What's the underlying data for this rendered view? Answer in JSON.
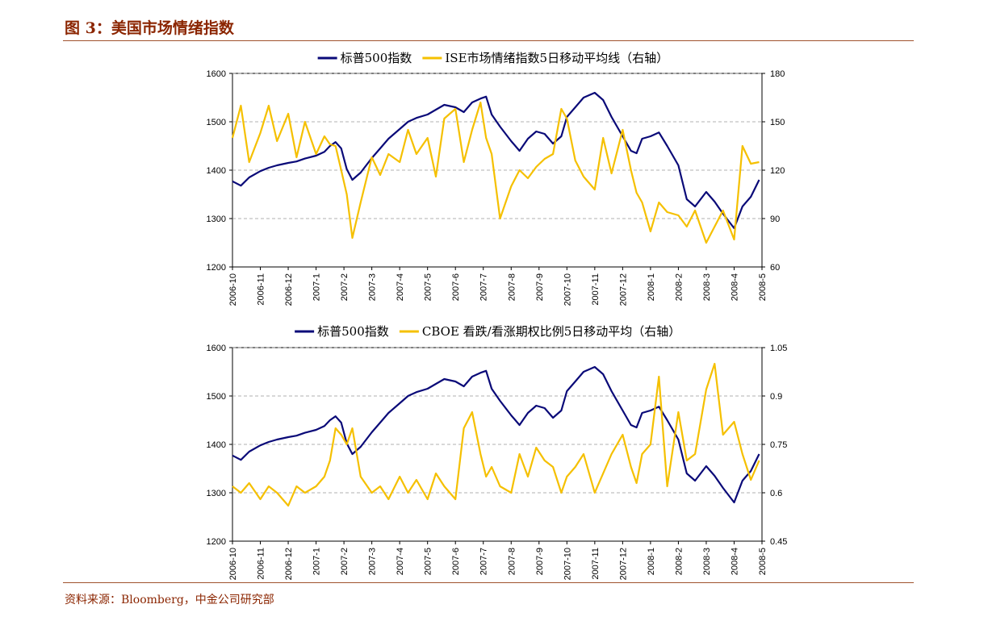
{
  "figure": {
    "title": "图 3：美国市场情绪指数",
    "source": "资料来源：Bloomberg，中金公司研究部"
  },
  "colors": {
    "spx": "#0a0a78",
    "indicator": "#f5c000",
    "grid": "#999999"
  },
  "chart_data": [
    {
      "type": "line",
      "legend": [
        "标普500指数",
        "ISE市场情绪指数5日移动平均线（右轴）"
      ],
      "legend_placement": "top-center",
      "grid": true,
      "x_ticks": [
        "2006-10",
        "2006-11",
        "2006-12",
        "2007-1",
        "2007-2",
        "2007-3",
        "2007-4",
        "2007-5",
        "2007-6",
        "2007-7",
        "2007-8",
        "2007-9",
        "2007-10",
        "2007-11",
        "2007-12",
        "2008-1",
        "2008-2",
        "2008-3",
        "2008-4",
        "2008-5"
      ],
      "y_left": {
        "min": 1200,
        "max": 1600,
        "ticks": [
          "1200",
          "1300",
          "1400",
          "1500",
          "1600"
        ]
      },
      "y_right": {
        "min": 60,
        "max": 180,
        "ticks": [
          "60",
          "90",
          "120",
          "150",
          "180"
        ]
      },
      "series": [
        {
          "name": "标普500指数",
          "axis": "left",
          "color": "#0a0a78",
          "x": [
            0,
            0.3,
            0.6,
            1,
            1.3,
            1.6,
            2,
            2.3,
            2.6,
            3,
            3.3,
            3.5,
            3.7,
            3.9,
            4.1,
            4.3,
            4.6,
            5,
            5.3,
            5.6,
            6,
            6.3,
            6.6,
            7,
            7.3,
            7.6,
            8,
            8.3,
            8.6,
            8.9,
            9.1,
            9.3,
            9.6,
            10,
            10.3,
            10.6,
            10.9,
            11.2,
            11.5,
            11.8,
            12,
            12.3,
            12.6,
            13,
            13.3,
            13.6,
            14,
            14.3,
            14.5,
            14.7,
            15,
            15.3,
            15.6,
            16,
            16.3,
            16.6,
            17,
            17.3,
            17.6,
            18,
            18.3,
            18.6,
            18.9
          ],
          "values": [
            1377,
            1368,
            1385,
            1398,
            1405,
            1410,
            1415,
            1418,
            1424,
            1430,
            1438,
            1450,
            1458,
            1445,
            1402,
            1380,
            1395,
            1425,
            1445,
            1465,
            1485,
            1500,
            1508,
            1515,
            1525,
            1535,
            1530,
            1520,
            1540,
            1548,
            1552,
            1515,
            1490,
            1460,
            1440,
            1465,
            1480,
            1475,
            1455,
            1470,
            1510,
            1530,
            1550,
            1560,
            1545,
            1510,
            1470,
            1440,
            1435,
            1465,
            1470,
            1478,
            1450,
            1410,
            1340,
            1325,
            1355,
            1335,
            1310,
            1280,
            1325,
            1345,
            1380
          ]
        },
        {
          "name": "ISE市场情绪指数5日移动平均线（右轴）",
          "axis": "right",
          "color": "#f5c000",
          "x": [
            0,
            0.3,
            0.6,
            1,
            1.3,
            1.6,
            2,
            2.3,
            2.6,
            3,
            3.3,
            3.5,
            3.7,
            3.9,
            4.1,
            4.3,
            4.6,
            5,
            5.3,
            5.6,
            6,
            6.3,
            6.6,
            7,
            7.3,
            7.6,
            8,
            8.3,
            8.6,
            8.9,
            9.1,
            9.3,
            9.6,
            10,
            10.3,
            10.6,
            10.9,
            11.2,
            11.5,
            11.8,
            12,
            12.3,
            12.6,
            13,
            13.3,
            13.6,
            14,
            14.3,
            14.5,
            14.7,
            15,
            15.3,
            15.6,
            16,
            16.3,
            16.6,
            17,
            17.3,
            17.6,
            18,
            18.3,
            18.6,
            18.9
          ],
          "values": [
            140,
            160,
            125,
            143,
            160,
            138,
            155,
            128,
            150,
            130,
            141,
            136,
            135,
            120,
            105,
            78,
            100,
            128,
            117,
            130,
            125,
            145,
            130,
            140,
            116,
            152,
            158,
            125,
            145,
            162,
            140,
            130,
            90,
            110,
            120,
            115,
            122,
            127,
            130,
            158,
            152,
            126,
            116,
            108,
            140,
            118,
            145,
            120,
            106,
            100,
            82,
            100,
            94,
            92,
            85,
            95,
            75,
            85,
            95,
            77,
            135,
            124,
            125
          ]
        }
      ]
    },
    {
      "type": "line",
      "legend": [
        "标普500指数",
        "CBOE 看跌/看涨期权比例5日移动平均（右轴）"
      ],
      "legend_placement": "top-center",
      "grid": true,
      "x_ticks": [
        "2006-10",
        "2006-11",
        "2006-12",
        "2007-1",
        "2007-2",
        "2007-3",
        "2007-4",
        "2007-5",
        "2007-6",
        "2007-7",
        "2007-8",
        "2007-9",
        "2007-10",
        "2007-11",
        "2007-12",
        "2008-1",
        "2008-2",
        "2008-3",
        "2008-4",
        "2008-5"
      ],
      "y_left": {
        "min": 1200,
        "max": 1600,
        "ticks": [
          "1200",
          "1300",
          "1400",
          "1500",
          "1600"
        ]
      },
      "y_right": {
        "min": 0.45,
        "max": 1.05,
        "ticks": [
          "0.45",
          "0.6",
          "0.75",
          "0.9",
          "1.05"
        ]
      },
      "series": [
        {
          "name": "标普500指数",
          "axis": "left",
          "color": "#0a0a78",
          "x": [
            0,
            0.3,
            0.6,
            1,
            1.3,
            1.6,
            2,
            2.3,
            2.6,
            3,
            3.3,
            3.5,
            3.7,
            3.9,
            4.1,
            4.3,
            4.6,
            5,
            5.3,
            5.6,
            6,
            6.3,
            6.6,
            7,
            7.3,
            7.6,
            8,
            8.3,
            8.6,
            8.9,
            9.1,
            9.3,
            9.6,
            10,
            10.3,
            10.6,
            10.9,
            11.2,
            11.5,
            11.8,
            12,
            12.3,
            12.6,
            13,
            13.3,
            13.6,
            14,
            14.3,
            14.5,
            14.7,
            15,
            15.3,
            15.6,
            16,
            16.3,
            16.6,
            17,
            17.3,
            17.6,
            18,
            18.3,
            18.6,
            18.9
          ],
          "values": [
            1377,
            1368,
            1385,
            1398,
            1405,
            1410,
            1415,
            1418,
            1424,
            1430,
            1438,
            1450,
            1458,
            1445,
            1402,
            1380,
            1395,
            1425,
            1445,
            1465,
            1485,
            1500,
            1508,
            1515,
            1525,
            1535,
            1530,
            1520,
            1540,
            1548,
            1552,
            1515,
            1490,
            1460,
            1440,
            1465,
            1480,
            1475,
            1455,
            1470,
            1510,
            1530,
            1550,
            1560,
            1545,
            1510,
            1470,
            1440,
            1435,
            1465,
            1470,
            1478,
            1450,
            1410,
            1340,
            1325,
            1355,
            1335,
            1310,
            1280,
            1325,
            1345,
            1380
          ]
        },
        {
          "name": "CBOE 看跌/看涨期权比例5日移动平均（右轴）",
          "axis": "right",
          "color": "#f5c000",
          "x": [
            0,
            0.3,
            0.6,
            1,
            1.3,
            1.6,
            2,
            2.3,
            2.6,
            3,
            3.3,
            3.5,
            3.7,
            3.9,
            4.1,
            4.3,
            4.6,
            5,
            5.3,
            5.6,
            6,
            6.3,
            6.6,
            7,
            7.3,
            7.6,
            8,
            8.3,
            8.6,
            8.9,
            9.1,
            9.3,
            9.6,
            10,
            10.3,
            10.6,
            10.9,
            11.2,
            11.5,
            11.8,
            12,
            12.3,
            12.6,
            13,
            13.3,
            13.6,
            14,
            14.3,
            14.5,
            14.7,
            15,
            15.3,
            15.6,
            16,
            16.3,
            16.6,
            17,
            17.3,
            17.6,
            18,
            18.3,
            18.6,
            18.9
          ],
          "values": [
            0.62,
            0.6,
            0.63,
            0.58,
            0.62,
            0.6,
            0.56,
            0.62,
            0.6,
            0.62,
            0.65,
            0.7,
            0.8,
            0.78,
            0.75,
            0.8,
            0.65,
            0.6,
            0.62,
            0.58,
            0.65,
            0.6,
            0.64,
            0.58,
            0.66,
            0.62,
            0.58,
            0.8,
            0.85,
            0.72,
            0.65,
            0.68,
            0.62,
            0.6,
            0.72,
            0.65,
            0.74,
            0.7,
            0.68,
            0.6,
            0.65,
            0.68,
            0.72,
            0.6,
            0.66,
            0.72,
            0.78,
            0.68,
            0.63,
            0.72,
            0.75,
            0.96,
            0.62,
            0.85,
            0.7,
            0.72,
            0.92,
            1.0,
            0.78,
            0.82,
            0.72,
            0.64,
            0.7
          ]
        }
      ]
    }
  ]
}
